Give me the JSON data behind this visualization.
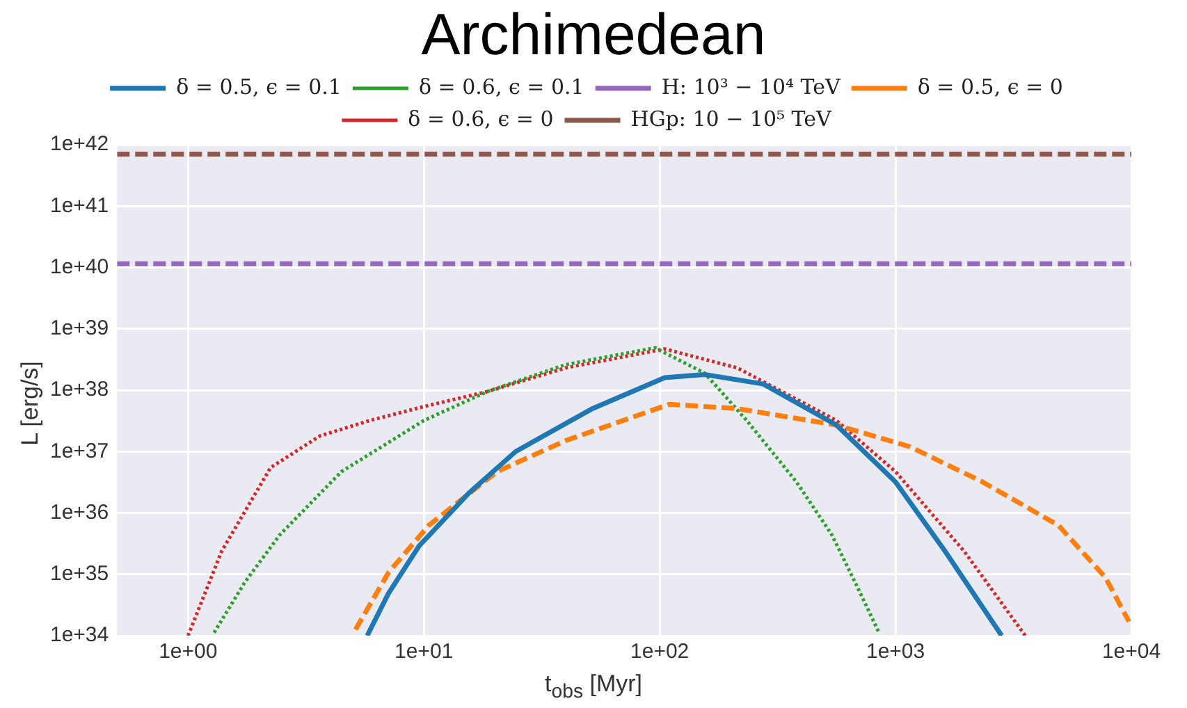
{
  "chart_data": {
    "type": "line",
    "title": "Archimedean",
    "xlabel": "t$_{obs}$ [Myr]",
    "ylabel": "L [erg/s]",
    "log": "xy",
    "grid": true,
    "legend": "top",
    "marker": "none",
    "xlim": [
      0.5,
      10000
    ],
    "ylim": [
      1e+34,
      1e+42
    ],
    "xticks": [
      {
        "value": 1,
        "label": "1e+00"
      },
      {
        "value": 10,
        "label": "1e+01"
      },
      {
        "value": 100,
        "label": "1e+02"
      },
      {
        "value": 1000,
        "label": "1e+03"
      },
      {
        "value": 10000,
        "label": "1e+04"
      }
    ],
    "yticks": [
      {
        "value": 1e+34,
        "label": "1e+34"
      },
      {
        "value": 1e+35,
        "label": "1e+35"
      },
      {
        "value": 1e+36,
        "label": "1e+36"
      },
      {
        "value": 1e+37,
        "label": "1e+37"
      },
      {
        "value": 1e+38,
        "label": "1e+38"
      },
      {
        "value": 1e+39,
        "label": "1e+39"
      },
      {
        "value": 1e+40,
        "label": "1e+40"
      },
      {
        "value": 1e+41,
        "label": "1e+41"
      },
      {
        "value": 1e+42,
        "label": "1e+42"
      }
    ],
    "series": [
      {
        "name": "δ = 0.5, ϵ = 0.1",
        "color": "#1f77b4",
        "line_style": "solid",
        "x": [
          5.75,
          7.08,
          9.55,
          15.5,
          24.5,
          51.3,
          105,
          155,
          275,
          562,
          1000,
          1620,
          2820
        ],
        "values": [
          1e+34,
          4.9e+34,
          2.9e+35,
          2.1e+36,
          1e+37,
          4.9e+37,
          1.6e+38,
          1.8e+38,
          1.26e+38,
          2.7e+37,
          3.2e+36,
          2.4e+35,
          1e+34
        ]
      },
      {
        "name": "δ = 0.5, ϵ = 0",
        "color": "#ff7f0e",
        "line_style": "dashed",
        "x": [
          5.13,
          7.08,
          10.5,
          20.4,
          39.8,
          110,
          214,
          562,
          1150,
          2340,
          4900,
          7760,
          9770
        ],
        "values": [
          1.26e+34,
          1.07e+35,
          6.3e+35,
          4.7e+36,
          1.5e+37,
          5.9e+37,
          5e+37,
          2.7e+37,
          1.2e+37,
          3.2e+36,
          6.3e+35,
          8.9e+34,
          1.7e+34
        ]
      },
      {
        "name": "δ = 0.6, ϵ = 0.1",
        "color": "#2ca02c",
        "line_style": "dotted",
        "x": [
          1.29,
          1.74,
          2.45,
          4.47,
          10,
          18.6,
          39.8,
          95.5,
          155,
          234,
          380,
          537,
          692,
          851
        ],
        "values": [
          1.12e+34,
          7.4e+34,
          4.4e+35,
          4.7e+36,
          3.2e+37,
          9.5e+37,
          2.6e+38,
          4.9e+38,
          1.9e+38,
          3.2e+37,
          3.2e+36,
          4.4e+35,
          6e+34,
          1.12e+34
        ]
      },
      {
        "name": "δ = 0.6, ϵ = 0",
        "color": "#d62728",
        "line_style": "dotted",
        "x": [
          1,
          1.39,
          2.24,
          3.63,
          5.89,
          10,
          18.6,
          39.8,
          105,
          214,
          562,
          1000,
          1950,
          3550
        ],
        "values": [
          1e+34,
          2.4e+35,
          5.5e+36,
          1.8e+37,
          3.2e+37,
          5.4e+37,
          9.5e+37,
          2.3e+38,
          4.7e+38,
          2.3e+38,
          3.2e+37,
          4.7e+36,
          2.4e+35,
          1e+34
        ]
      },
      {
        "name": "H: 10³ − 10⁴ TeV",
        "color": "#9467bd",
        "line_style": "dashed",
        "x": [
          0.5,
          10000
        ],
        "values": [
          1.15e+40,
          1.15e+40
        ]
      },
      {
        "name": "HGp: 10 − 10⁵ TeV",
        "color": "#8c564b",
        "line_style": "dashed",
        "x": [
          0.5,
          10000
        ],
        "values": [
          7e+41,
          7e+41
        ]
      }
    ]
  }
}
